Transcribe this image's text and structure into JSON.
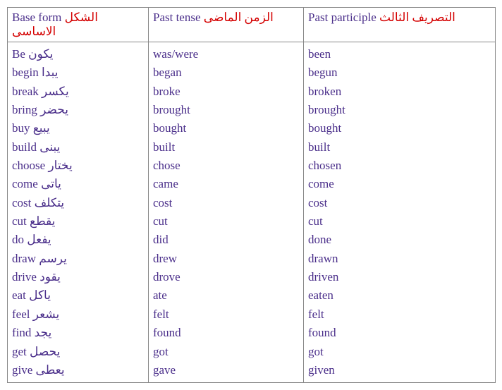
{
  "headers": {
    "col1": {
      "en": "Base form",
      "ar": "الشكل الاساسى"
    },
    "col2": {
      "en": "Past tense",
      "ar": "الزمن الماضى"
    },
    "col3": {
      "en": "Past participle",
      "ar": "التصريف الثالث"
    }
  },
  "rows": [
    {
      "base_en": "Be",
      "base_ar": "يكون",
      "past": "was/were",
      "pp": "been"
    },
    {
      "base_en": "begin",
      "base_ar": "يبدا",
      "past": "began",
      "pp": "begun"
    },
    {
      "base_en": "break",
      "base_ar": "يكسر",
      "past": "broke",
      "pp": "broken"
    },
    {
      "base_en": "bring",
      "base_ar": "يحضر",
      "past": "brought",
      "pp": "brought"
    },
    {
      "base_en": "buy",
      "base_ar": "يبيع",
      "past": "bought",
      "pp": "bought"
    },
    {
      "base_en": "build",
      "base_ar": "يبنى",
      "past": "built",
      "pp": "built"
    },
    {
      "base_en": "choose",
      "base_ar": "يختار",
      "past": "chose",
      "pp": "chosen"
    },
    {
      "base_en": "come",
      "base_ar": "ياتى",
      "past": "came",
      "pp": "come"
    },
    {
      "base_en": "cost",
      "base_ar": "يتكلف",
      "past": "cost",
      "pp": "cost"
    },
    {
      "base_en": "cut",
      "base_ar": "يقطع",
      "past": "cut",
      "pp": "cut"
    },
    {
      "base_en": "do",
      "base_ar": "يفعل",
      "past": "did",
      "pp": "done"
    },
    {
      "base_en": "draw",
      "base_ar": "يرسم",
      "past": "drew",
      "pp": "drawn"
    },
    {
      "base_en": "drive",
      "base_ar": "يقود",
      "past": "drove",
      "pp": "driven"
    },
    {
      "base_en": "eat",
      "base_ar": "ياكل",
      "past": "ate",
      "pp": "eaten"
    },
    {
      "base_en": "feel",
      "base_ar": "يشعر",
      "past": "felt",
      "pp": "felt"
    },
    {
      "base_en": "find",
      "base_ar": "يجد",
      "past": "found",
      "pp": "found"
    },
    {
      "base_en": "get",
      "base_ar": "يحصل",
      "past": "got",
      "pp": "got"
    },
    {
      "base_en": "give",
      "base_ar": "يعطى",
      "past": "gave",
      "pp": "given"
    }
  ],
  "style": {
    "text_color": "#4a2e8a",
    "arabic_header_color": "#d40000",
    "border_color": "#888888",
    "font_size_pt": 13,
    "background_color": "#ffffff"
  }
}
